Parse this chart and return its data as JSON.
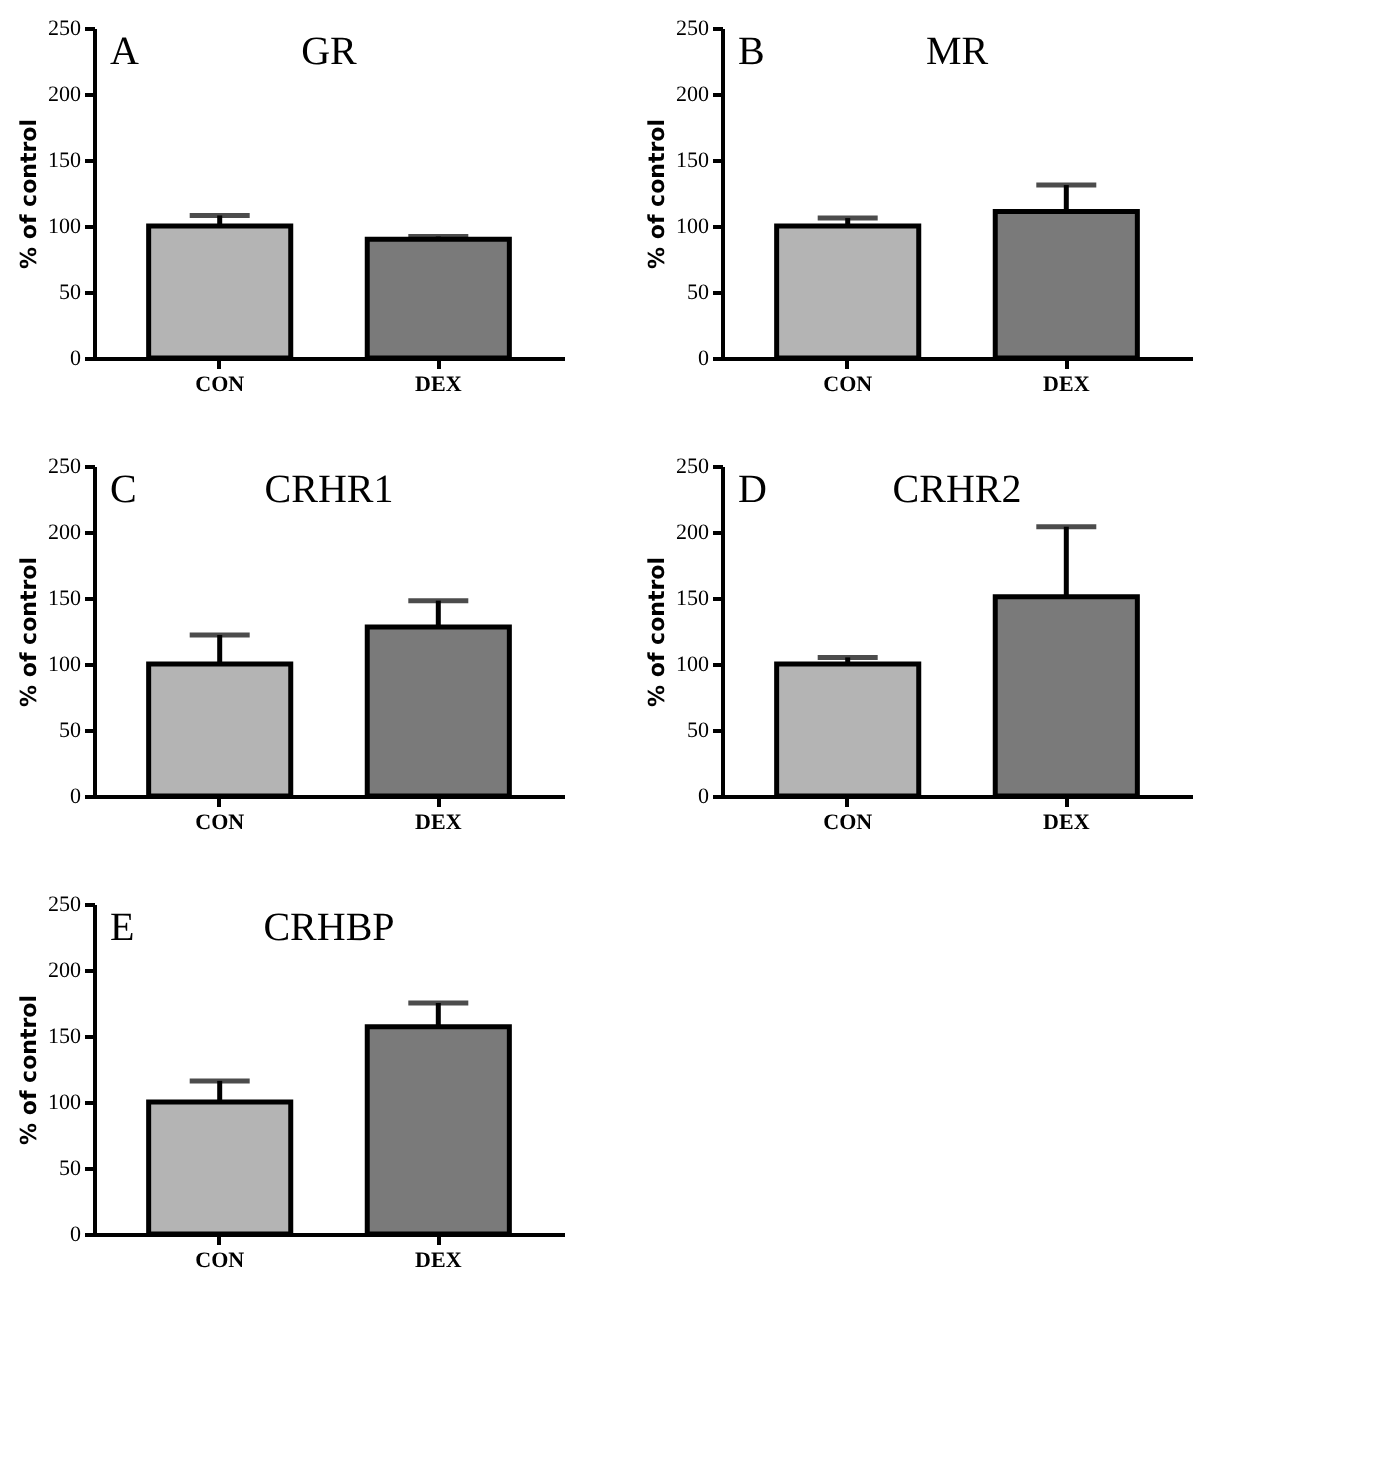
{
  "chart_data": [
    {
      "type": "bar",
      "title": "GR",
      "annotations": [
        "A"
      ],
      "ylabel": "% of control",
      "categories": [
        "CON",
        "DEX"
      ],
      "values": [
        100,
        90
      ],
      "errors": [
        8,
        2
      ],
      "colors": [
        "#b4b4b4",
        "#7a7a7a"
      ],
      "ylim": [
        0,
        250
      ],
      "yticks": [
        0,
        50,
        100,
        150,
        200,
        250
      ],
      "grid": false
    },
    {
      "type": "bar",
      "title": "MR",
      "annotations": [
        "B"
      ],
      "ylabel": "% of control",
      "categories": [
        "CON",
        "DEX"
      ],
      "values": [
        100,
        111
      ],
      "errors": [
        6,
        20
      ],
      "colors": [
        "#b4b4b4",
        "#7a7a7a"
      ],
      "ylim": [
        0,
        250
      ],
      "yticks": [
        0,
        50,
        100,
        150,
        200,
        250
      ],
      "grid": false
    },
    {
      "type": "bar",
      "title": "CRHR1",
      "annotations": [
        "C"
      ],
      "ylabel": "% of control",
      "categories": [
        "CON",
        "DEX"
      ],
      "values": [
        100,
        128
      ],
      "errors": [
        22,
        20
      ],
      "colors": [
        "#b4b4b4",
        "#7a7a7a"
      ],
      "ylim": [
        0,
        250
      ],
      "yticks": [
        0,
        50,
        100,
        150,
        200,
        250
      ],
      "grid": false
    },
    {
      "type": "bar",
      "title": "CRHR2",
      "annotations": [
        "D"
      ],
      "ylabel": "% of control",
      "categories": [
        "CON",
        "DEX"
      ],
      "values": [
        100,
        151
      ],
      "errors": [
        5,
        53
      ],
      "colors": [
        "#b4b4b4",
        "#7a7a7a"
      ],
      "ylim": [
        0,
        250
      ],
      "yticks": [
        0,
        50,
        100,
        150,
        200,
        250
      ],
      "grid": false
    },
    {
      "type": "bar",
      "title": "CRHBP",
      "annotations": [
        "E"
      ],
      "ylabel": "% of control",
      "categories": [
        "CON",
        "DEX"
      ],
      "values": [
        100,
        157
      ],
      "errors": [
        16,
        18
      ],
      "colors": [
        "#b4b4b4",
        "#7a7a7a"
      ],
      "ylim": [
        0,
        250
      ],
      "yticks": [
        0,
        50,
        100,
        150,
        200,
        250
      ],
      "grid": false
    }
  ]
}
